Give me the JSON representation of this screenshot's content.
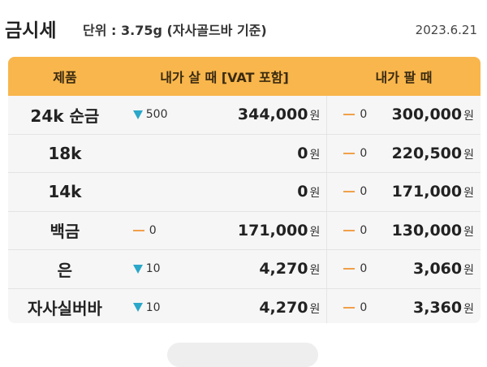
{
  "header": {
    "title": "금시세",
    "unit": "단위 : 3.75g (자사골드바 기준)",
    "date": "2023.6.21"
  },
  "table": {
    "columns": [
      "제품",
      "내가 살 때 [VAT 포함]",
      "내가 팔 때"
    ],
    "currency": "원",
    "rows": [
      {
        "name": "24k 순금",
        "buy_change_dir": "down",
        "buy_change": "500",
        "buy_price": "344,000",
        "sell_change_dir": "flat",
        "sell_change": "0",
        "sell_price": "300,000"
      },
      {
        "name": "18k",
        "buy_change_dir": "none",
        "buy_change": "",
        "buy_price": "0",
        "sell_change_dir": "flat",
        "sell_change": "0",
        "sell_price": "220,500"
      },
      {
        "name": "14k",
        "buy_change_dir": "none",
        "buy_change": "",
        "buy_price": "0",
        "sell_change_dir": "flat",
        "sell_change": "0",
        "sell_price": "171,000"
      },
      {
        "name": "백금",
        "buy_change_dir": "flat",
        "buy_change": "0",
        "buy_price": "171,000",
        "sell_change_dir": "flat",
        "sell_change": "0",
        "sell_price": "130,000"
      },
      {
        "name": "은",
        "buy_change_dir": "down",
        "buy_change": "10",
        "buy_price": "4,270",
        "sell_change_dir": "flat",
        "sell_change": "0",
        "sell_price": "3,060"
      },
      {
        "name": "자사실버바",
        "buy_change_dir": "down",
        "buy_change": "10",
        "buy_price": "4,270",
        "sell_change_dir": "flat",
        "sell_change": "0",
        "sell_price": "3,360"
      }
    ]
  },
  "colors": {
    "header_bg": "#f8b64c",
    "down_arrow": "#2aa7c9",
    "flat_dash": "#f1a04a"
  }
}
